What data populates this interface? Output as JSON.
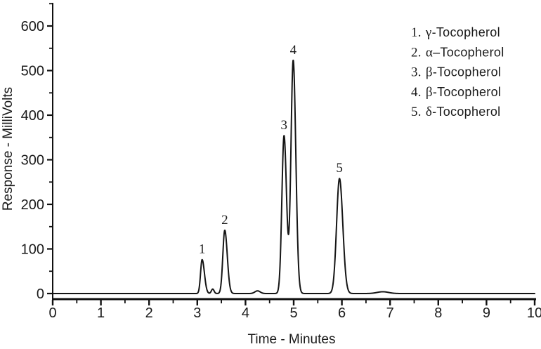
{
  "chart_data": {
    "type": "line",
    "title": "",
    "xlabel": "Time - Minutes",
    "ylabel": "Response - MilliVolts",
    "xlim": [
      0,
      10
    ],
    "ylim": [
      0,
      650
    ],
    "x_major_ticks": [
      0,
      1,
      2,
      3,
      4,
      5,
      6,
      7,
      8,
      9,
      10
    ],
    "x_minor_step": 0.5,
    "y_major_ticks": [
      0,
      100,
      200,
      300,
      400,
      500,
      600
    ],
    "y_minor_step": 50,
    "y_minor_max": 650,
    "grid": false,
    "legend_position": "top-right",
    "colors": {
      "trace": "#151515",
      "axis": "#111111",
      "text": "#1a1a1a",
      "background": "#ffffff"
    },
    "peaks": [
      {
        "label": "1",
        "name": "γ-Tocopherol",
        "rt_min": 3.1,
        "height_mv": 76,
        "sigma_min": 0.032,
        "tail": 0.5
      },
      {
        "label": "2",
        "name": "α–Tocopherol",
        "rt_min": 3.57,
        "height_mv": 142,
        "sigma_min": 0.04,
        "tail": 0.3
      },
      {
        "label": "3",
        "name": "β-Tocopherol",
        "rt_min": 4.8,
        "height_mv": 354,
        "sigma_min": 0.045,
        "tail": 0.15
      },
      {
        "label": "4",
        "name": "β-Tocopherol",
        "rt_min": 4.99,
        "height_mv": 523,
        "sigma_min": 0.047,
        "tail": 0.15
      },
      {
        "label": "5",
        "name": "δ-Tocopherol",
        "rt_min": 5.95,
        "height_mv": 258,
        "sigma_min": 0.06,
        "tail": 0.15
      }
    ],
    "minor_features": [
      {
        "rt_min": 3.32,
        "height_mv": 10,
        "sigma_min": 0.028
      },
      {
        "rt_min": 4.25,
        "height_mv": 6,
        "sigma_min": 0.055
      },
      {
        "rt_min": 6.85,
        "height_mv": 4,
        "sigma_min": 0.12
      }
    ],
    "legend_items": [
      {
        "num": "1.",
        "greek": "γ",
        "dash": "-",
        "name": "Tocopherol"
      },
      {
        "num": "2.",
        "greek": "α",
        "dash": "–",
        "name": "Tocopherol"
      },
      {
        "num": "3.",
        "greek": "β",
        "dash": "-",
        "name": "Tocopherol"
      },
      {
        "num": "4.",
        "greek": "β",
        "dash": "-",
        "name": "Tocopherol"
      },
      {
        "num": "5.",
        "greek": "δ",
        "dash": "-",
        "name": "Tocopherol"
      }
    ]
  }
}
